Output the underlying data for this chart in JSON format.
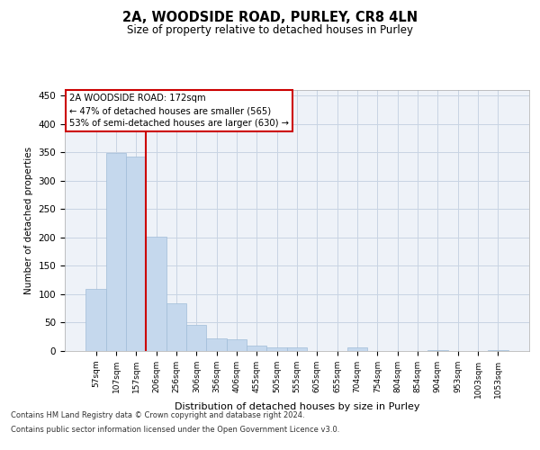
{
  "title": "2A, WOODSIDE ROAD, PURLEY, CR8 4LN",
  "subtitle": "Size of property relative to detached houses in Purley",
  "xlabel": "Distribution of detached houses by size in Purley",
  "ylabel": "Number of detached properties",
  "bar_labels": [
    "57sqm",
    "107sqm",
    "157sqm",
    "206sqm",
    "256sqm",
    "306sqm",
    "356sqm",
    "406sqm",
    "455sqm",
    "505sqm",
    "555sqm",
    "605sqm",
    "655sqm",
    "704sqm",
    "754sqm",
    "804sqm",
    "854sqm",
    "904sqm",
    "953sqm",
    "1003sqm",
    "1053sqm"
  ],
  "bar_values": [
    109,
    349,
    343,
    202,
    84,
    46,
    22,
    20,
    9,
    7,
    6,
    0,
    0,
    7,
    0,
    0,
    0,
    2,
    0,
    0,
    2
  ],
  "bar_color": "#c5d8ed",
  "bar_edgecolor": "#a0bcd8",
  "vline_x": 2.5,
  "vline_color": "#cc0000",
  "ylim": [
    0,
    460
  ],
  "yticks": [
    0,
    50,
    100,
    150,
    200,
    250,
    300,
    350,
    400,
    450
  ],
  "annotation_title": "2A WOODSIDE ROAD: 172sqm",
  "annotation_line1": "← 47% of detached houses are smaller (565)",
  "annotation_line2": "53% of semi-detached houses are larger (630) →",
  "annotation_box_color": "#cc0000",
  "grid_color": "#c8d4e3",
  "bg_color": "#eef2f8",
  "footer1": "Contains HM Land Registry data © Crown copyright and database right 2024.",
  "footer2": "Contains public sector information licensed under the Open Government Licence v3.0."
}
